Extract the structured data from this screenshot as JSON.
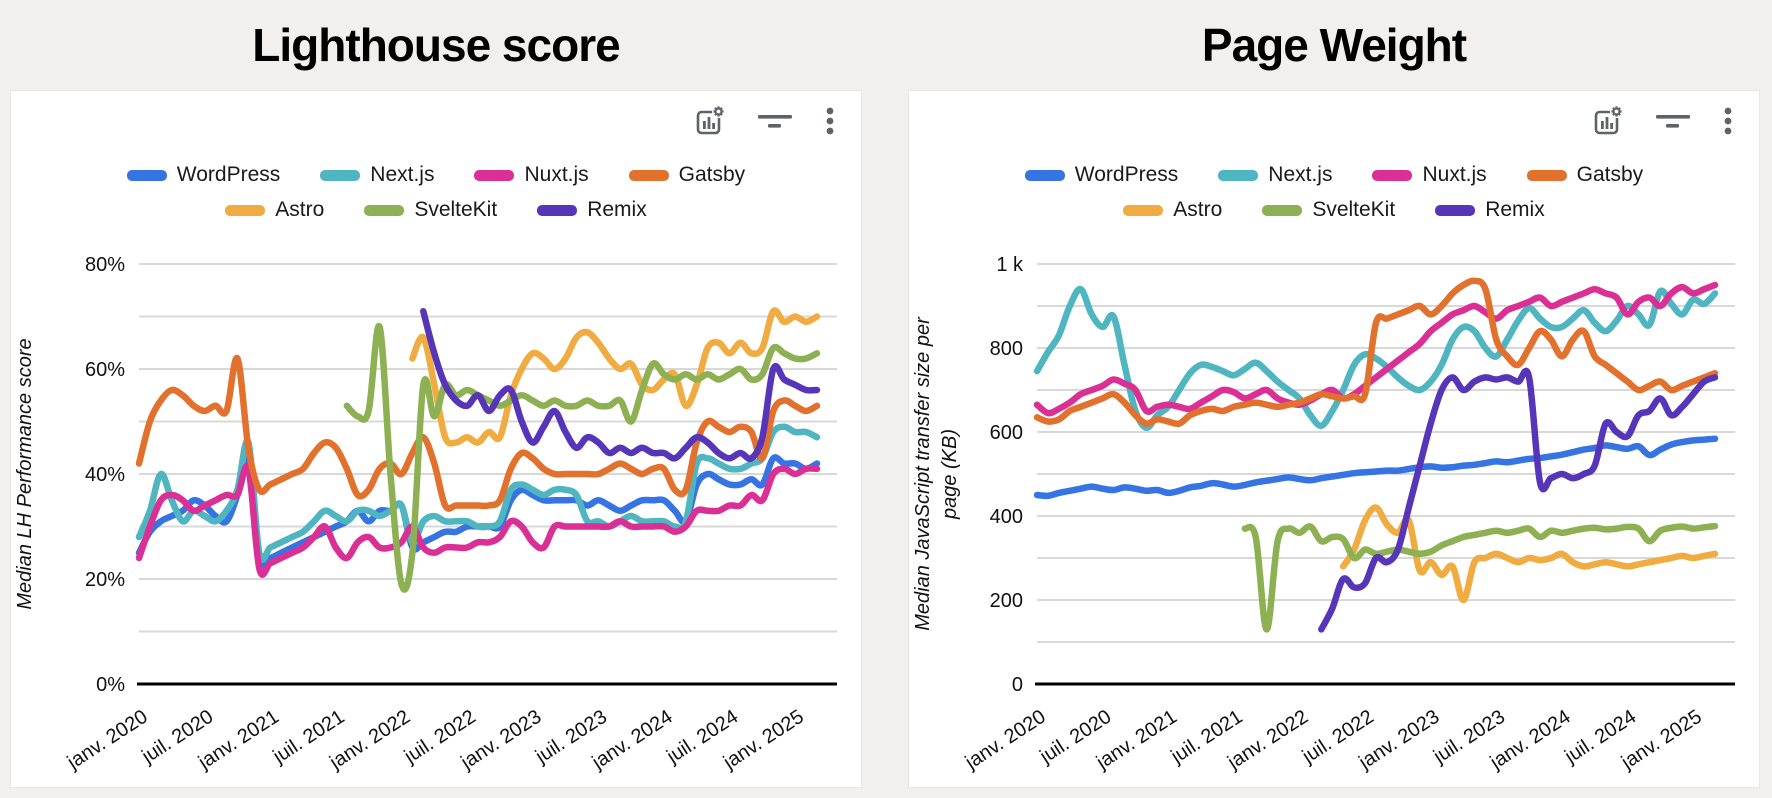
{
  "page": {
    "background_color": "#f1f0ee",
    "card_background": "#ffffff",
    "gridline_color": "#d8d8d8",
    "axis_color": "#000000",
    "toolbar_icon_color": "#5f6368",
    "toolbar_icons": [
      "chart-settings-icon",
      "filter-icon",
      "more-vertical-icon"
    ]
  },
  "chart_data": [
    {
      "type": "line",
      "title": "Lighthouse score",
      "ylabel_lines": [
        "Median LH Performance score"
      ],
      "y_max": 80,
      "y_grid_step": 10,
      "y_ticks": [
        {
          "value": 0,
          "label": "0%"
        },
        {
          "value": 20,
          "label": "20%"
        },
        {
          "value": 40,
          "label": "40%"
        },
        {
          "value": 60,
          "label": "60%"
        },
        {
          "value": 80,
          "label": "80%"
        }
      ],
      "months_total": 63,
      "x_ticks": [
        {
          "month_index": 0,
          "label": "janv. 2020"
        },
        {
          "month_index": 6,
          "label": "juil. 2020"
        },
        {
          "month_index": 12,
          "label": "janv. 2021"
        },
        {
          "month_index": 18,
          "label": "juil. 2021"
        },
        {
          "month_index": 24,
          "label": "janv. 2022"
        },
        {
          "month_index": 30,
          "label": "juil. 2022"
        },
        {
          "month_index": 36,
          "label": "janv. 2023"
        },
        {
          "month_index": 42,
          "label": "juil. 2023"
        },
        {
          "month_index": 48,
          "label": "janv. 2024"
        },
        {
          "month_index": 54,
          "label": "juil. 2024"
        },
        {
          "month_index": 60,
          "label": "janv. 2025"
        }
      ],
      "series": [
        {
          "name": "WordPress",
          "color": "#3574E2",
          "start_month": 0,
          "values": [
            25,
            29,
            31,
            32,
            33,
            35,
            34,
            32,
            31,
            36,
            43,
            24,
            24,
            25,
            26,
            27,
            28,
            29,
            30,
            31,
            33,
            31,
            33,
            33,
            34,
            26,
            27,
            28,
            29,
            29,
            30,
            30,
            30,
            30,
            35,
            37,
            36,
            35,
            35,
            35,
            35,
            34,
            35,
            34,
            33,
            34,
            35,
            35,
            35,
            33,
            31,
            38,
            40,
            39,
            38,
            38,
            39,
            38,
            43,
            42,
            42,
            41,
            42
          ]
        },
        {
          "name": "Next.js",
          "color": "#4FB5C0",
          "start_month": 0,
          "values": [
            28,
            33,
            40,
            35,
            31,
            33,
            32,
            31,
            33,
            37,
            46,
            25,
            26,
            27,
            28,
            29,
            31,
            33,
            32,
            31,
            33,
            33,
            32,
            33,
            34,
            27,
            31,
            32,
            31,
            31,
            31,
            30,
            30,
            31,
            37,
            38,
            37,
            36,
            37,
            37,
            36,
            31,
            31,
            30,
            31,
            32,
            31,
            31,
            31,
            30,
            31,
            42,
            43,
            42,
            41,
            41,
            42,
            43,
            48,
            49,
            48,
            48,
            47
          ]
        },
        {
          "name": "Nuxt.js",
          "color": "#DA3095",
          "start_month": 0,
          "values": [
            24,
            30,
            35,
            36,
            35,
            33,
            34,
            35,
            36,
            36,
            41,
            22,
            23,
            24,
            25,
            26,
            28,
            30,
            26,
            24,
            27,
            28,
            26,
            26,
            27,
            30,
            26,
            25,
            26,
            26,
            26,
            27,
            27,
            28,
            31,
            30,
            27,
            26,
            30,
            30,
            30,
            30,
            30,
            30,
            31,
            30,
            30,
            30,
            30,
            29,
            30,
            33,
            33,
            33,
            34,
            34,
            36,
            35,
            40,
            41,
            40,
            41,
            41
          ]
        },
        {
          "name": "Gatsby",
          "color": "#E2712D",
          "start_month": 0,
          "values": [
            42,
            50,
            54,
            56,
            55,
            53,
            52,
            53,
            52,
            62,
            45,
            37,
            38,
            39,
            40,
            41,
            44,
            46,
            45,
            41,
            36,
            37,
            41,
            42,
            40,
            44,
            47,
            42,
            34,
            34,
            34,
            34,
            34,
            35,
            41,
            44,
            43,
            41,
            40,
            40,
            40,
            40,
            40,
            41,
            42,
            41,
            40,
            41,
            41,
            37,
            37,
            46,
            50,
            49,
            48,
            49,
            48,
            43,
            52,
            54,
            53,
            52,
            53
          ]
        },
        {
          "name": "Astro",
          "color": "#F0AC41",
          "start_month": 25,
          "values": [
            62,
            66,
            57,
            47,
            46,
            47,
            46,
            48,
            47,
            55,
            60,
            63,
            62,
            60,
            62,
            66,
            67,
            65,
            62,
            60,
            61,
            57,
            56,
            58,
            59,
            53,
            57,
            64,
            65,
            63,
            65,
            63,
            64,
            71,
            69,
            70,
            69,
            70
          ]
        },
        {
          "name": "SvelteKit",
          "color": "#8DB052",
          "start_month": 19,
          "values": [
            53,
            51,
            52,
            68,
            40,
            19,
            25,
            57,
            51,
            57,
            55,
            56,
            55,
            54,
            53,
            54,
            55,
            54,
            53,
            54,
            53,
            53,
            54,
            53,
            53,
            54,
            50,
            56,
            61,
            59,
            58,
            59,
            58,
            59,
            58,
            59,
            60,
            58,
            59,
            64,
            63,
            62,
            62,
            63
          ]
        },
        {
          "name": "Remix",
          "color": "#5735B8",
          "start_month": 26,
          "values": [
            71,
            63,
            57,
            54,
            53,
            55,
            52,
            55,
            56,
            50,
            46,
            49,
            52,
            48,
            45,
            47,
            46,
            44,
            45,
            44,
            45,
            44,
            44,
            43,
            45,
            47,
            46,
            44,
            43,
            44,
            43,
            47,
            60,
            58,
            57,
            56,
            56
          ]
        }
      ]
    },
    {
      "type": "line",
      "title": "Page Weight",
      "ylabel_lines": [
        "Median JavaScript transfer size per",
        "page (KB)"
      ],
      "y_max": 1000,
      "y_grid_step": 100,
      "y_ticks": [
        {
          "value": 0,
          "label": "0"
        },
        {
          "value": 200,
          "label": "200"
        },
        {
          "value": 400,
          "label": "400"
        },
        {
          "value": 600,
          "label": "600"
        },
        {
          "value": 800,
          "label": "800"
        },
        {
          "value": 1000,
          "label": "1 k"
        }
      ],
      "months_total": 63,
      "x_ticks": [
        {
          "month_index": 0,
          "label": "janv. 2020"
        },
        {
          "month_index": 6,
          "label": "juil. 2020"
        },
        {
          "month_index": 12,
          "label": "janv. 2021"
        },
        {
          "month_index": 18,
          "label": "juil. 2021"
        },
        {
          "month_index": 24,
          "label": "janv. 2022"
        },
        {
          "month_index": 30,
          "label": "juil. 2022"
        },
        {
          "month_index": 36,
          "label": "janv. 2023"
        },
        {
          "month_index": 42,
          "label": "juil. 2023"
        },
        {
          "month_index": 48,
          "label": "janv. 2024"
        },
        {
          "month_index": 54,
          "label": "juil. 2024"
        },
        {
          "month_index": 60,
          "label": "janv. 2025"
        }
      ],
      "series": [
        {
          "name": "WordPress",
          "color": "#3574E2",
          "start_month": 0,
          "values": [
            450,
            448,
            455,
            460,
            465,
            470,
            465,
            462,
            468,
            465,
            460,
            462,
            455,
            460,
            468,
            472,
            478,
            475,
            470,
            474,
            480,
            484,
            488,
            492,
            488,
            485,
            490,
            494,
            498,
            502,
            504,
            506,
            508,
            508,
            512,
            516,
            518,
            515,
            516,
            520,
            522,
            526,
            530,
            528,
            532,
            536,
            538,
            542,
            546,
            552,
            558,
            562,
            568,
            564,
            560,
            566,
            545,
            558,
            570,
            576,
            580,
            582,
            584
          ]
        },
        {
          "name": "Next.js",
          "color": "#4FB5C0",
          "start_month": 0,
          "values": [
            745,
            790,
            830,
            900,
            940,
            880,
            850,
            875,
            760,
            650,
            610,
            640,
            660,
            700,
            740,
            760,
            755,
            745,
            735,
            750,
            765,
            745,
            720,
            700,
            680,
            640,
            615,
            650,
            700,
            760,
            785,
            775,
            755,
            730,
            710,
            700,
            720,
            760,
            820,
            850,
            840,
            800,
            780,
            820,
            865,
            895,
            870,
            850,
            850,
            870,
            890,
            860,
            840,
            865,
            900,
            880,
            855,
            935,
            905,
            880,
            915,
            905,
            930
          ]
        },
        {
          "name": "Nuxt.js",
          "color": "#DA3095",
          "start_month": 0,
          "values": [
            665,
            645,
            655,
            670,
            690,
            700,
            710,
            725,
            715,
            700,
            650,
            660,
            665,
            660,
            655,
            670,
            685,
            700,
            695,
            680,
            690,
            700,
            680,
            670,
            665,
            675,
            690,
            700,
            680,
            690,
            710,
            730,
            750,
            770,
            790,
            810,
            840,
            860,
            880,
            890,
            900,
            885,
            870,
            890,
            900,
            910,
            920,
            900,
            910,
            920,
            930,
            940,
            930,
            920,
            880,
            910,
            920,
            900,
            930,
            945,
            930,
            940,
            950
          ]
        },
        {
          "name": "Gatsby",
          "color": "#E2712D",
          "start_month": 0,
          "values": [
            635,
            625,
            630,
            650,
            660,
            670,
            680,
            690,
            670,
            640,
            620,
            630,
            625,
            620,
            640,
            650,
            655,
            650,
            660,
            665,
            670,
            665,
            660,
            665,
            670,
            680,
            690,
            685,
            680,
            685,
            690,
            860,
            870,
            880,
            890,
            900,
            880,
            900,
            930,
            950,
            960,
            940,
            820,
            780,
            760,
            800,
            840,
            820,
            780,
            820,
            840,
            780,
            760,
            740,
            720,
            700,
            710,
            720,
            700,
            710,
            720,
            730,
            740
          ]
        },
        {
          "name": "Astro",
          "color": "#F0AC41",
          "start_month": 28,
          "values": [
            280,
            320,
            390,
            420,
            380,
            360,
            390,
            270,
            290,
            260,
            280,
            200,
            290,
            300,
            310,
            300,
            290,
            300,
            295,
            300,
            310,
            290,
            280,
            285,
            290,
            285,
            280,
            285,
            290,
            295,
            300,
            305,
            300,
            305,
            310
          ]
        },
        {
          "name": "SvelteKit",
          "color": "#8DB052",
          "start_month": 19,
          "values": [
            370,
            350,
            130,
            340,
            370,
            360,
            375,
            340,
            350,
            345,
            300,
            320,
            310,
            315,
            320,
            315,
            310,
            315,
            330,
            340,
            350,
            355,
            360,
            365,
            360,
            365,
            370,
            350,
            365,
            360,
            365,
            370,
            372,
            368,
            370,
            374,
            370,
            340,
            365,
            372,
            375,
            370,
            373,
            376
          ]
        },
        {
          "name": "Remix",
          "color": "#5735B8",
          "start_month": 26,
          "values": [
            130,
            180,
            250,
            230,
            240,
            300,
            290,
            320,
            420,
            520,
            620,
            700,
            730,
            700,
            720,
            730,
            725,
            730,
            720,
            730,
            480,
            490,
            500,
            490,
            500,
            520,
            620,
            600,
            590,
            640,
            650,
            680,
            640,
            660,
            690,
            720,
            730
          ]
        }
      ]
    }
  ]
}
